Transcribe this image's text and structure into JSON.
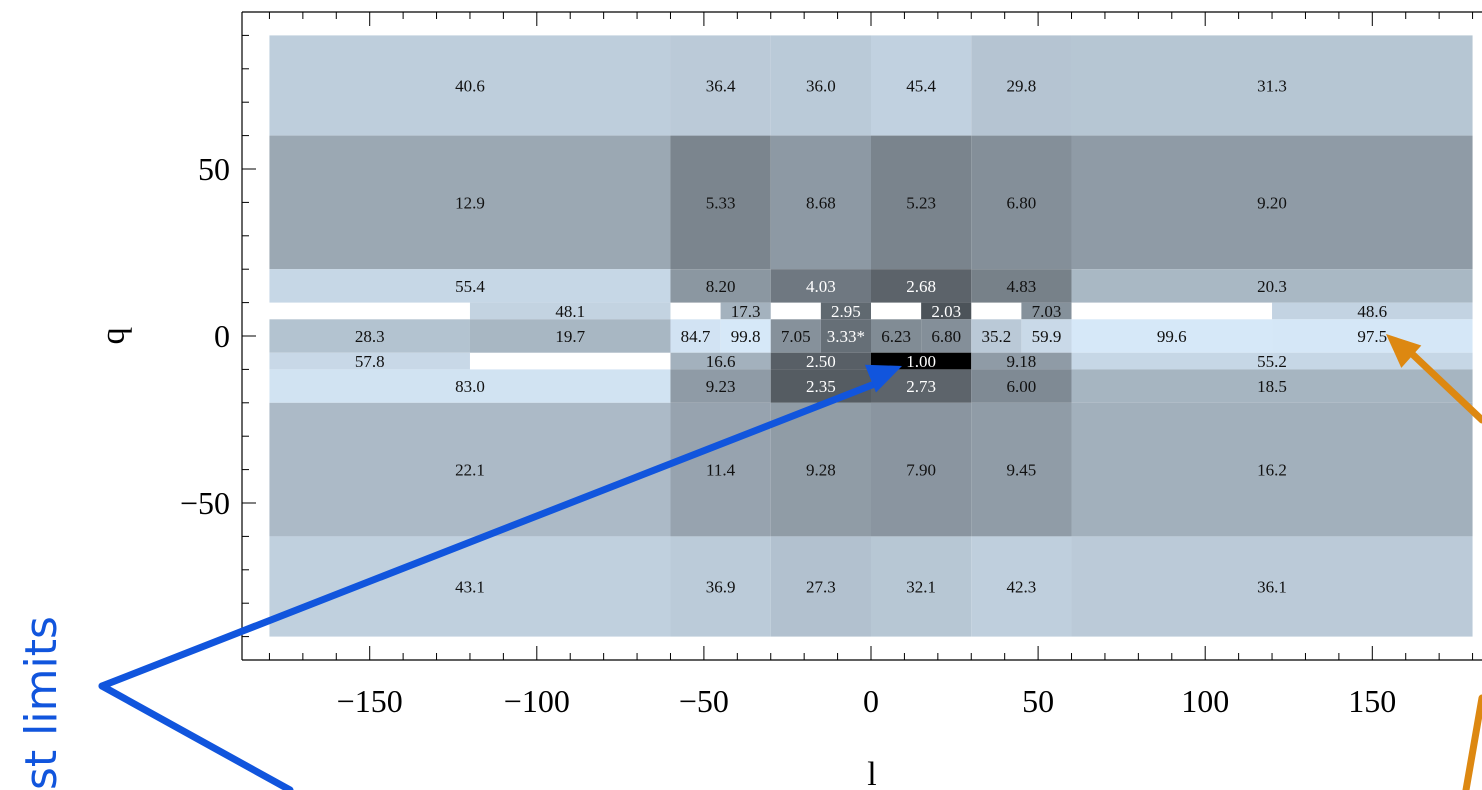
{
  "chart_data": {
    "type": "heatmap",
    "xlabel": "l",
    "ylabel": "b",
    "xlim": [
      -185,
      185
    ],
    "ylim": [
      -90,
      100
    ],
    "xticks": [
      -150,
      -100,
      -50,
      0,
      50,
      100,
      150
    ],
    "yticks": [
      -50,
      0,
      50
    ],
    "xtick_labels": [
      "−150",
      "−100",
      "−50",
      "0",
      "50",
      "100",
      "150"
    ],
    "ytick_labels": [
      "−50",
      "0",
      "50"
    ],
    "cells": [
      {
        "l": [
          -180,
          -60
        ],
        "b": [
          60,
          90
        ],
        "value": 40.6,
        "label": "40.6"
      },
      {
        "l": [
          -60,
          -30
        ],
        "b": [
          60,
          90
        ],
        "value": 36.4,
        "label": "36.4"
      },
      {
        "l": [
          -30,
          0
        ],
        "b": [
          60,
          90
        ],
        "value": 36.0,
        "label": "36.0"
      },
      {
        "l": [
          0,
          30
        ],
        "b": [
          60,
          90
        ],
        "value": 45.4,
        "label": "45.4"
      },
      {
        "l": [
          30,
          60
        ],
        "b": [
          60,
          90
        ],
        "value": 29.8,
        "label": "29.8"
      },
      {
        "l": [
          60,
          180
        ],
        "b": [
          60,
          90
        ],
        "value": 31.3,
        "label": "31.3"
      },
      {
        "l": [
          -180,
          -60
        ],
        "b": [
          20,
          60
        ],
        "value": 12.9,
        "label": "12.9"
      },
      {
        "l": [
          -60,
          -30
        ],
        "b": [
          20,
          60
        ],
        "value": 5.33,
        "label": "5.33"
      },
      {
        "l": [
          -30,
          0
        ],
        "b": [
          20,
          60
        ],
        "value": 8.68,
        "label": "8.68"
      },
      {
        "l": [
          0,
          30
        ],
        "b": [
          20,
          60
        ],
        "value": 5.23,
        "label": "5.23"
      },
      {
        "l": [
          30,
          60
        ],
        "b": [
          20,
          60
        ],
        "value": 6.8,
        "label": "6.80"
      },
      {
        "l": [
          60,
          180
        ],
        "b": [
          20,
          60
        ],
        "value": 9.2,
        "label": "9.20"
      },
      {
        "l": [
          -180,
          -60
        ],
        "b": [
          10,
          20
        ],
        "value": 55.4,
        "label": "55.4"
      },
      {
        "l": [
          -60,
          -30
        ],
        "b": [
          10,
          20
        ],
        "value": 8.2,
        "label": "8.20"
      },
      {
        "l": [
          -30,
          0
        ],
        "b": [
          10,
          20
        ],
        "value": 4.03,
        "label": "4.03"
      },
      {
        "l": [
          0,
          30
        ],
        "b": [
          10,
          20
        ],
        "value": 2.68,
        "label": "2.68"
      },
      {
        "l": [
          30,
          60
        ],
        "b": [
          10,
          20
        ],
        "value": 4.83,
        "label": "4.83"
      },
      {
        "l": [
          60,
          180
        ],
        "b": [
          10,
          20
        ],
        "value": 20.3,
        "label": "20.3"
      },
      {
        "l": [
          -120,
          -60
        ],
        "b": [
          5,
          10
        ],
        "value": 48.1,
        "label": "48.1"
      },
      {
        "l": [
          -45,
          -30
        ],
        "b": [
          5,
          10
        ],
        "value": 17.3,
        "label": "17.3"
      },
      {
        "l": [
          -15,
          0
        ],
        "b": [
          5,
          10
        ],
        "value": 2.95,
        "label": "2.95"
      },
      {
        "l": [
          15,
          30
        ],
        "b": [
          5,
          10
        ],
        "value": 2.03,
        "label": "2.03"
      },
      {
        "l": [
          45,
          60
        ],
        "b": [
          5,
          10
        ],
        "value": 7.03,
        "label": "7.03"
      },
      {
        "l": [
          120,
          180
        ],
        "b": [
          5,
          10
        ],
        "value": 48.6,
        "label": "48.6"
      },
      {
        "l": [
          -180,
          -120
        ],
        "b": [
          -5,
          5
        ],
        "value": 28.3,
        "label": "28.3"
      },
      {
        "l": [
          -120,
          -60
        ],
        "b": [
          -5,
          5
        ],
        "value": 19.7,
        "label": "19.7"
      },
      {
        "l": [
          -60,
          -45
        ],
        "b": [
          -5,
          5
        ],
        "value": 84.7,
        "label": "84.7"
      },
      {
        "l": [
          -45,
          -30
        ],
        "b": [
          -5,
          5
        ],
        "value": 99.8,
        "label": "99.8"
      },
      {
        "l": [
          -30,
          -15
        ],
        "b": [
          -5,
          5
        ],
        "value": 7.05,
        "label": "7.05"
      },
      {
        "l": [
          -15,
          0
        ],
        "b": [
          -5,
          5
        ],
        "value": 3.33,
        "label": "3.33*"
      },
      {
        "l": [
          0,
          15
        ],
        "b": [
          -5,
          5
        ],
        "value": 6.23,
        "label": "6.23"
      },
      {
        "l": [
          15,
          30
        ],
        "b": [
          -5,
          5
        ],
        "value": 6.8,
        "label": "6.80"
      },
      {
        "l": [
          30,
          45
        ],
        "b": [
          -5,
          5
        ],
        "value": 35.2,
        "label": "35.2"
      },
      {
        "l": [
          45,
          60
        ],
        "b": [
          -5,
          5
        ],
        "value": 59.9,
        "label": "59.9"
      },
      {
        "l": [
          60,
          120
        ],
        "b": [
          -5,
          5
        ],
        "value": 99.6,
        "label": "99.6"
      },
      {
        "l": [
          120,
          180
        ],
        "b": [
          -5,
          5
        ],
        "value": 97.5,
        "label": "97.5"
      },
      {
        "l": [
          -180,
          -120
        ],
        "b": [
          -10,
          -5
        ],
        "value": 57.8,
        "label": "57.8"
      },
      {
        "l": [
          -60,
          -30
        ],
        "b": [
          -10,
          -5
        ],
        "value": 16.6,
        "label": "16.6"
      },
      {
        "l": [
          -30,
          0
        ],
        "b": [
          -10,
          -5
        ],
        "value": 2.5,
        "label": "2.50"
      },
      {
        "l": [
          0,
          30
        ],
        "b": [
          -10,
          -5
        ],
        "value": 1.0,
        "label": "1.00"
      },
      {
        "l": [
          30,
          60
        ],
        "b": [
          -10,
          -5
        ],
        "value": 9.18,
        "label": "9.18"
      },
      {
        "l": [
          60,
          180
        ],
        "b": [
          -10,
          -5
        ],
        "value": 55.2,
        "label": "55.2"
      },
      {
        "l": [
          -180,
          -60
        ],
        "b": [
          -20,
          -10
        ],
        "value": 83.0,
        "label": "83.0"
      },
      {
        "l": [
          -60,
          -30
        ],
        "b": [
          -20,
          -10
        ],
        "value": 9.23,
        "label": "9.23"
      },
      {
        "l": [
          -30,
          0
        ],
        "b": [
          -20,
          -10
        ],
        "value": 2.35,
        "label": "2.35"
      },
      {
        "l": [
          0,
          30
        ],
        "b": [
          -20,
          -10
        ],
        "value": 2.73,
        "label": "2.73"
      },
      {
        "l": [
          30,
          60
        ],
        "b": [
          -20,
          -10
        ],
        "value": 6.0,
        "label": "6.00"
      },
      {
        "l": [
          60,
          180
        ],
        "b": [
          -20,
          -10
        ],
        "value": 18.5,
        "label": "18.5"
      },
      {
        "l": [
          -180,
          -60
        ],
        "b": [
          -60,
          -20
        ],
        "value": 22.1,
        "label": "22.1"
      },
      {
        "l": [
          -60,
          -30
        ],
        "b": [
          -60,
          -20
        ],
        "value": 11.4,
        "label": "11.4"
      },
      {
        "l": [
          -30,
          0
        ],
        "b": [
          -60,
          -20
        ],
        "value": 9.28,
        "label": "9.28"
      },
      {
        "l": [
          0,
          30
        ],
        "b": [
          -60,
          -20
        ],
        "value": 7.9,
        "label": "7.90"
      },
      {
        "l": [
          30,
          60
        ],
        "b": [
          -60,
          -20
        ],
        "value": 9.45,
        "label": "9.45"
      },
      {
        "l": [
          60,
          180
        ],
        "b": [
          -60,
          -20
        ],
        "value": 16.2,
        "label": "16.2"
      },
      {
        "l": [
          -180,
          -60
        ],
        "b": [
          -90,
          -60
        ],
        "value": 43.1,
        "label": "43.1"
      },
      {
        "l": [
          -60,
          -30
        ],
        "b": [
          -90,
          -60
        ],
        "value": 36.9,
        "label": "36.9"
      },
      {
        "l": [
          -30,
          0
        ],
        "b": [
          -90,
          -60
        ],
        "value": 27.3,
        "label": "27.3"
      },
      {
        "l": [
          0,
          30
        ],
        "b": [
          -90,
          -60
        ],
        "value": 32.1,
        "label": "32.1"
      },
      {
        "l": [
          30,
          60
        ],
        "b": [
          -90,
          -60
        ],
        "value": 42.3,
        "label": "42.3"
      },
      {
        "l": [
          60,
          180
        ],
        "b": [
          -90,
          -60
        ],
        "value": 36.1,
        "label": "36.1"
      }
    ]
  },
  "annotation": {
    "text": "st limits",
    "color": "#1155dd",
    "arrow_colors": {
      "blue": "#1155dd",
      "orange": "#dd8811"
    }
  }
}
